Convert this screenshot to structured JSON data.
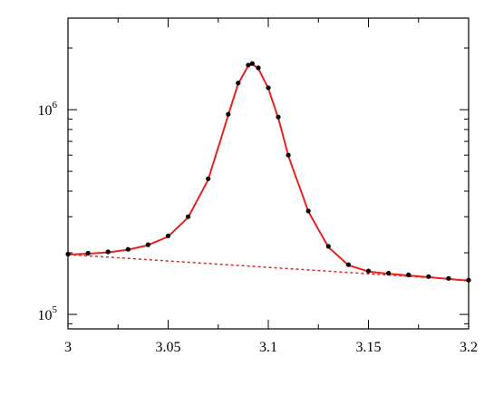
{
  "chart_data": {
    "type": "scatter",
    "title": "",
    "xlabel": "",
    "ylabel": "",
    "xlim": [
      3.0,
      3.2
    ],
    "ylim": [
      85000,
      2800000
    ],
    "yscale": "log",
    "grid": false,
    "x_ticks": [
      {
        "value": 3.0,
        "label": "3"
      },
      {
        "value": 3.05,
        "label": "3.05"
      },
      {
        "value": 3.1,
        "label": "3.1"
      },
      {
        "value": 3.15,
        "label": "3.15"
      },
      {
        "value": 3.2,
        "label": "3.2"
      }
    ],
    "y_ticks": [
      {
        "value": 100000,
        "base": "10",
        "exp": "5"
      },
      {
        "value": 1000000,
        "base": "10",
        "exp": "6"
      }
    ],
    "series": [
      {
        "style": "markers",
        "color": "#000000",
        "points": [
          [
            3.0,
            197000
          ],
          [
            3.01,
            199000
          ],
          [
            3.02,
            202000
          ],
          [
            3.03,
            208000
          ],
          [
            3.04,
            219000
          ],
          [
            3.05,
            242000
          ],
          [
            3.06,
            300000
          ],
          [
            3.07,
            460000
          ],
          [
            3.08,
            950000
          ],
          [
            3.085,
            1350000
          ],
          [
            3.09,
            1650000
          ],
          [
            3.092,
            1680000
          ],
          [
            3.095,
            1600000
          ],
          [
            3.1,
            1280000
          ],
          [
            3.105,
            920000
          ],
          [
            3.11,
            600000
          ],
          [
            3.12,
            320000
          ],
          [
            3.13,
            215000
          ],
          [
            3.14,
            175000
          ],
          [
            3.15,
            163000
          ],
          [
            3.16,
            159000
          ],
          [
            3.17,
            156000
          ],
          [
            3.18,
            153000
          ],
          [
            3.19,
            150000
          ],
          [
            3.2,
            147000
          ]
        ]
      },
      {
        "style": "solid",
        "color": "#e8231e",
        "points": [
          [
            3.0,
            196000
          ],
          [
            3.01,
            198000
          ],
          [
            3.02,
            201000
          ],
          [
            3.03,
            207000
          ],
          [
            3.04,
            218000
          ],
          [
            3.05,
            240000
          ],
          [
            3.06,
            298000
          ],
          [
            3.07,
            455000
          ],
          [
            3.08,
            940000
          ],
          [
            3.085,
            1340000
          ],
          [
            3.09,
            1640000
          ],
          [
            3.092,
            1670000
          ],
          [
            3.095,
            1590000
          ],
          [
            3.1,
            1270000
          ],
          [
            3.105,
            910000
          ],
          [
            3.11,
            595000
          ],
          [
            3.12,
            318000
          ],
          [
            3.13,
            213000
          ],
          [
            3.14,
            174000
          ],
          [
            3.15,
            162000
          ],
          [
            3.16,
            158000
          ],
          [
            3.17,
            155000
          ],
          [
            3.18,
            152000
          ],
          [
            3.19,
            149000
          ],
          [
            3.2,
            146000
          ]
        ]
      },
      {
        "style": "dotted",
        "color": "#e8231e",
        "points": [
          [
            3.0,
            196000
          ],
          [
            3.2,
            147000
          ]
        ]
      }
    ]
  }
}
